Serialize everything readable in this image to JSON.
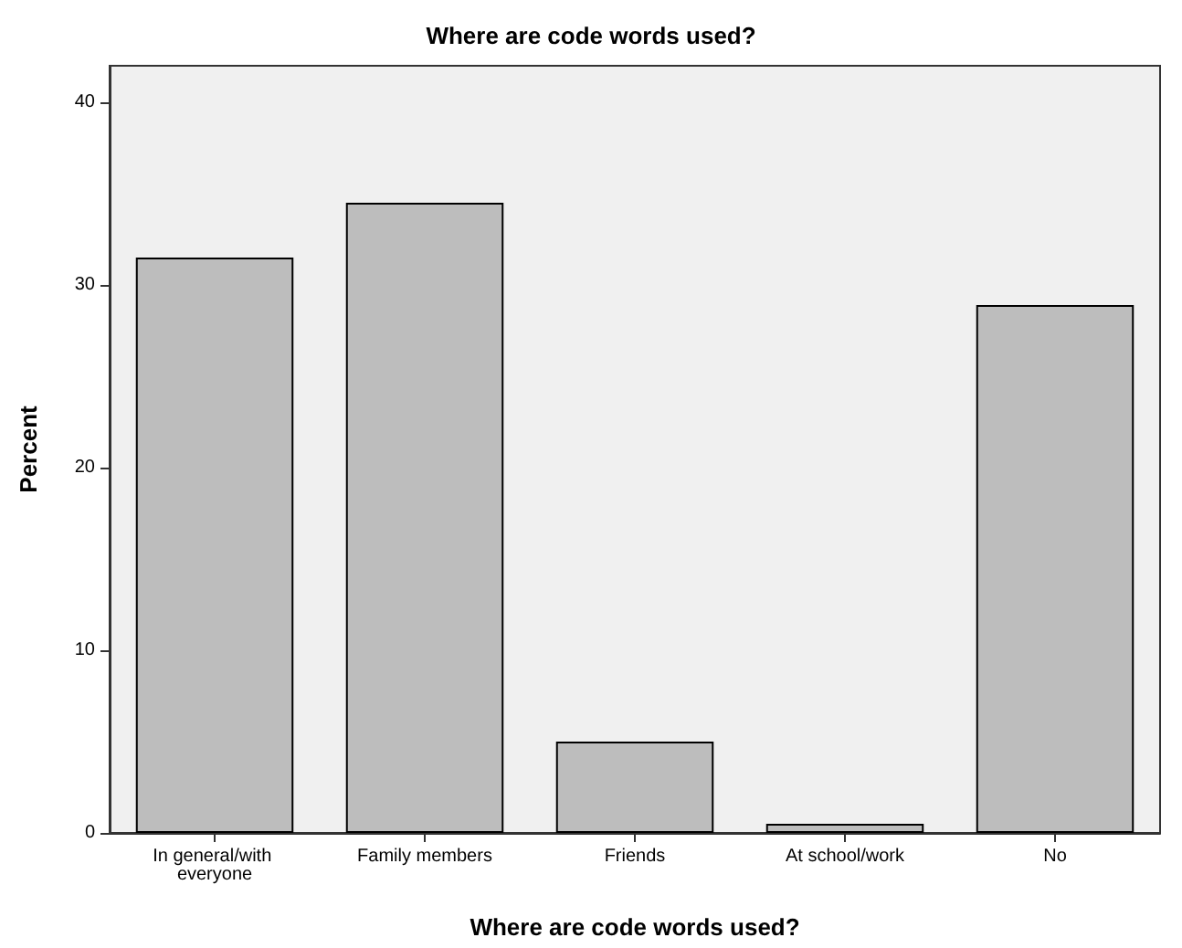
{
  "chart_data": {
    "type": "bar",
    "title": "Where are code words used?",
    "xlabel": "Where are code words used?",
    "ylabel": "Percent",
    "categories": [
      "In general/with everyone",
      "Family members",
      "Friends",
      "At school/work",
      "No"
    ],
    "values": [
      31.5,
      34.5,
      5.0,
      0.5,
      28.9
    ],
    "color": "#bdbdbd",
    "ylim": [
      0,
      42
    ],
    "yticks": [
      0,
      10,
      20,
      30,
      40
    ],
    "grid": false
  }
}
